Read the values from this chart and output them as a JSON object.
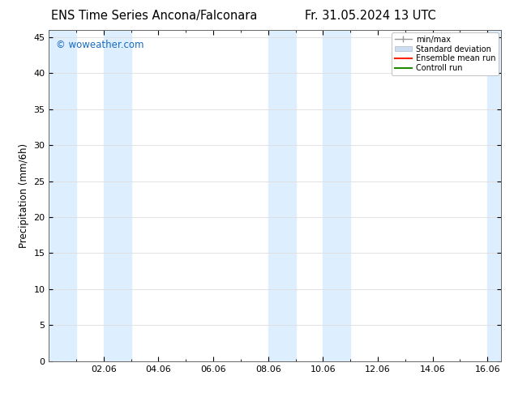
{
  "title": "ENS Time Series Ancona/Falconara",
  "title_right": "Fr. 31.05.2024 13 UTC",
  "ylabel": "Precipitation (mm/6h)",
  "watermark": "© woweather.com",
  "watermark_color": "#1a6bbf",
  "ylim": [
    0,
    46
  ],
  "yticks": [
    0,
    5,
    10,
    15,
    20,
    25,
    30,
    35,
    40,
    45
  ],
  "xtick_labels": [
    "02.06",
    "04.06",
    "06.06",
    "08.06",
    "10.06",
    "12.06",
    "14.06",
    "16.06"
  ],
  "xtick_positions": [
    2,
    4,
    6,
    8,
    10,
    12,
    14,
    16
  ],
  "xlim": [
    0,
    16.5
  ],
  "shaded_bands": [
    [
      0.0,
      1.0
    ],
    [
      2.0,
      3.0
    ],
    [
      8.0,
      9.0
    ],
    [
      10.0,
      11.0
    ],
    [
      16.0,
      16.5
    ]
  ],
  "shaded_color": "#ddeeff",
  "legend_items": [
    {
      "label": "min/max",
      "color": "#aaaaaa",
      "type": "errorbar"
    },
    {
      "label": "Standard deviation",
      "color": "#ccddee",
      "type": "box"
    },
    {
      "label": "Ensemble mean run",
      "color": "#ff0000",
      "type": "line"
    },
    {
      "label": "Controll run",
      "color": "#008000",
      "type": "line"
    }
  ],
  "bg_color": "#ffffff",
  "plot_bg_color": "#ffffff",
  "grid_color": "#dddddd",
  "title_fontsize": 10.5,
  "axis_fontsize": 8.5,
  "tick_fontsize": 8
}
